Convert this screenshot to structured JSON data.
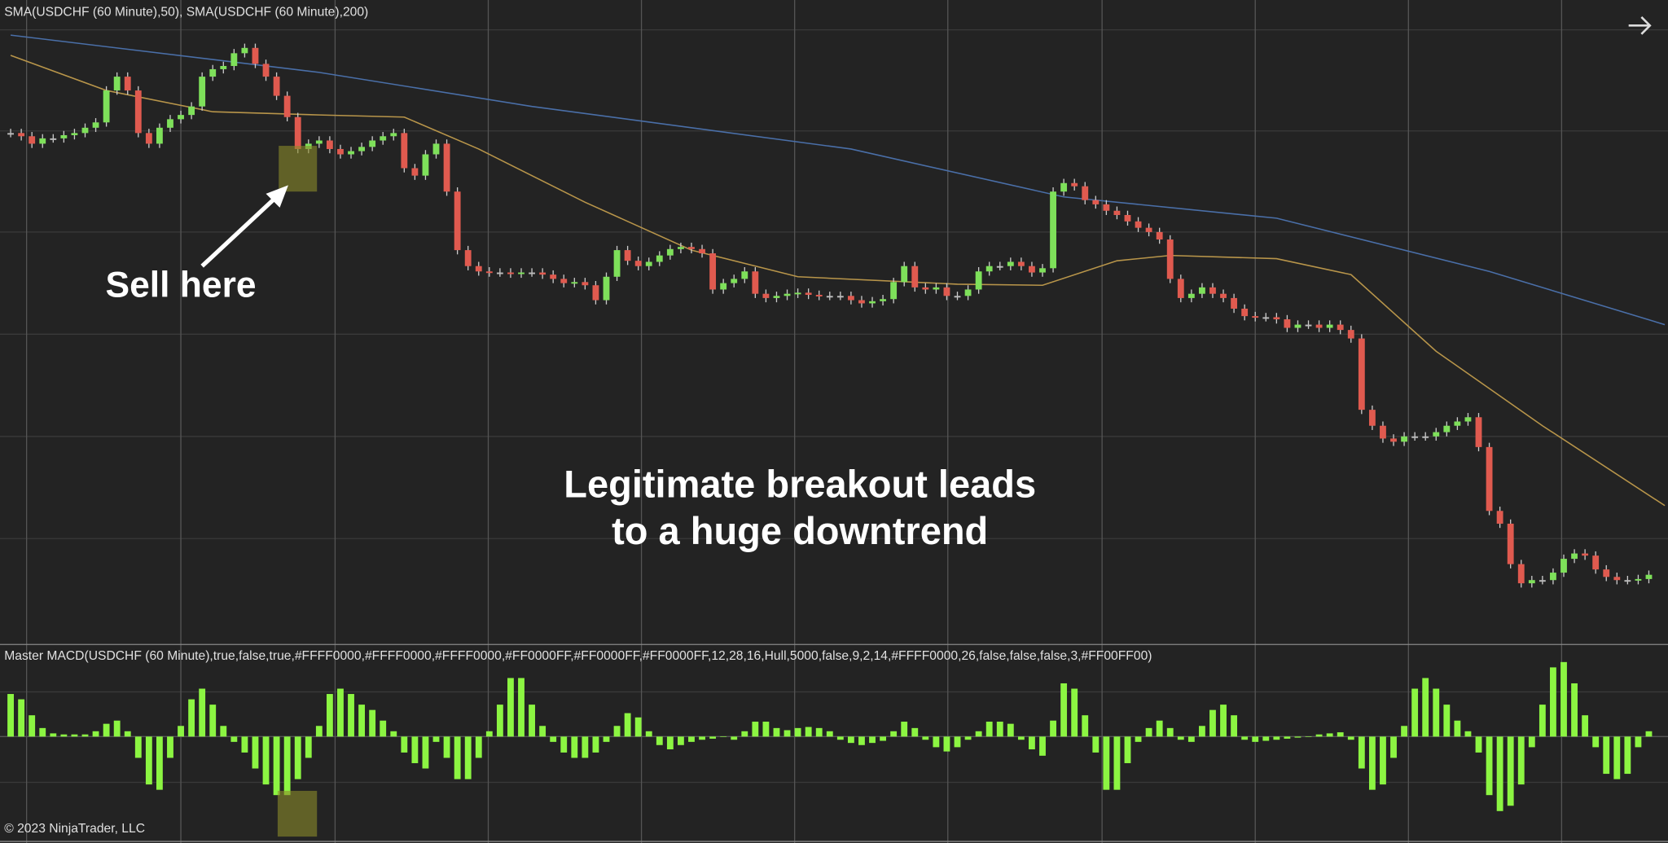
{
  "price_label": "SMA(USDCHF (60 Minute),50), SMA(USDCHF (60 Minute),200)",
  "annotations": [
    "Sell here",
    "Legitimate breakout leads",
    "to a huge downtrend"
  ],
  "macd_label": "Master MACD(USDCHF (60 Minute),true,false,true,#FFFF0000,#FFFF0000,#FFFF0000,#FF0000FF,#FF0000FF,#FF0000FF,12,28,16,Hull,5000,false,9,2,14,#FFFF0000,26,false,false,false,3,#FF00FF00)",
  "copyright": "© 2023 NinjaTrader, LLC",
  "chart_data": [
    {
      "type": "candlestick",
      "up_color": "#7ee05a",
      "down_color": "#e05a4f",
      "xlim": [
        -1,
        155.8
      ],
      "ylim": [
        0,
        605
      ],
      "close": [
        480,
        477,
        470,
        475,
        475,
        478,
        480,
        485,
        490,
        520,
        533,
        520,
        480,
        470,
        485,
        493,
        497,
        505,
        533,
        540,
        543,
        555,
        560,
        545,
        533,
        515,
        495,
        465,
        470,
        473,
        465,
        460,
        463,
        467,
        473,
        477,
        480,
        447,
        440,
        460,
        470,
        425,
        370,
        355,
        350,
        349,
        349,
        348,
        349,
        349,
        347,
        343,
        339,
        340,
        337,
        323,
        345,
        370,
        360,
        355,
        359,
        365,
        371,
        373,
        371,
        367,
        333,
        339,
        343,
        350,
        329,
        325,
        327,
        329,
        330,
        328,
        327,
        327,
        327,
        323,
        320,
        322,
        324,
        340,
        355,
        335,
        333,
        335,
        327,
        327,
        333,
        350,
        355,
        355,
        359,
        355,
        349,
        353,
        425,
        433,
        430,
        417,
        413,
        407,
        403,
        397,
        391,
        387,
        380,
        343,
        325,
        329,
        335,
        329,
        325,
        315,
        308,
        307,
        307,
        305,
        297,
        300,
        300,
        297,
        300,
        295,
        287,
        220,
        205,
        193,
        190,
        195,
        195,
        195,
        199,
        205,
        209,
        213,
        185,
        125,
        113,
        75,
        57,
        60,
        60,
        67,
        80,
        85,
        83,
        70,
        63,
        60,
        60,
        61,
        65
      ],
      "lines": [
        {
          "color": "#4a6fa8",
          "x": [
            0,
            29,
            49,
            79,
            99,
            119,
            139,
            155.5
          ],
          "values": [
            572,
            537,
            505,
            465,
            420,
            400,
            350,
            300
          ]
        },
        {
          "color": "#b8954a",
          "x": [
            0,
            9,
            19,
            29,
            37,
            44,
            54,
            64,
            74,
            89,
            97,
            104,
            109,
            119,
            126,
            134,
            144,
            155.5
          ],
          "values": [
            553,
            520,
            500,
            497,
            495,
            465,
            415,
            370,
            345,
            338,
            337,
            360,
            365,
            362,
            347,
            275,
            205,
            130
          ]
        }
      ]
    },
    {
      "type": "bar",
      "color": "#8cf542",
      "xlim": [
        -1,
        155.8
      ],
      "ylim": [
        -98,
        84
      ],
      "values": [
        40,
        35,
        20,
        8,
        3,
        2,
        2,
        2,
        5,
        12,
        15,
        5,
        -20,
        -45,
        -50,
        -20,
        10,
        35,
        45,
        30,
        10,
        -5,
        -15,
        -30,
        -45,
        -55,
        -55,
        -40,
        -20,
        10,
        40,
        45,
        40,
        30,
        25,
        15,
        5,
        -15,
        -25,
        -30,
        -5,
        -20,
        -40,
        -40,
        -20,
        5,
        30,
        55,
        55,
        30,
        10,
        -5,
        -15,
        -20,
        -20,
        -15,
        -5,
        10,
        22,
        18,
        5,
        -8,
        -12,
        -8,
        -5,
        -3,
        -2,
        0,
        -3,
        5,
        14,
        14,
        8,
        6,
        8,
        9,
        8,
        5,
        -3,
        -6,
        -8,
        -6,
        -4,
        5,
        14,
        8,
        -3,
        -10,
        -14,
        -10,
        -3,
        5,
        14,
        14,
        12,
        -3,
        -12,
        -18,
        15,
        50,
        45,
        20,
        -15,
        -50,
        -50,
        -25,
        -5,
        8,
        15,
        8,
        -3,
        -5,
        10,
        25,
        30,
        20,
        -3,
        -5,
        -4,
        -3,
        -2,
        -1,
        0,
        2,
        3,
        4,
        -3,
        -30,
        -50,
        -45,
        -20,
        10,
        45,
        55,
        45,
        30,
        15,
        5,
        -15,
        -55,
        -70,
        -65,
        -45,
        -10,
        30,
        65,
        70,
        50,
        20,
        -10,
        -35,
        -40,
        -35,
        -10,
        5
      ]
    }
  ]
}
